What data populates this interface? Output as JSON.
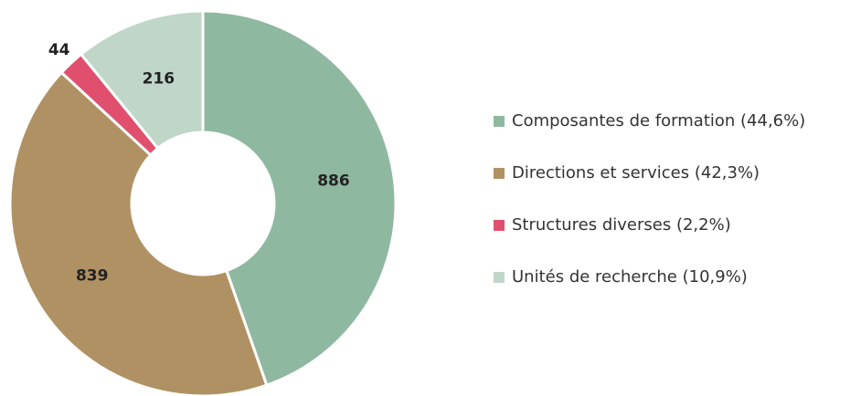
{
  "chart_data": {
    "type": "donut",
    "categories": [
      "Composantes de formation (44,6%)",
      "Directions et services (42,3%)",
      "Structures diverses (2,2%)",
      "Unités de recherche (10,9%)"
    ],
    "values": [
      886,
      839,
      44,
      216
    ],
    "colors": [
      "#8fb8a0",
      "#b09163",
      "#e0506e",
      "#bfd6c9"
    ],
    "legend": "right"
  }
}
